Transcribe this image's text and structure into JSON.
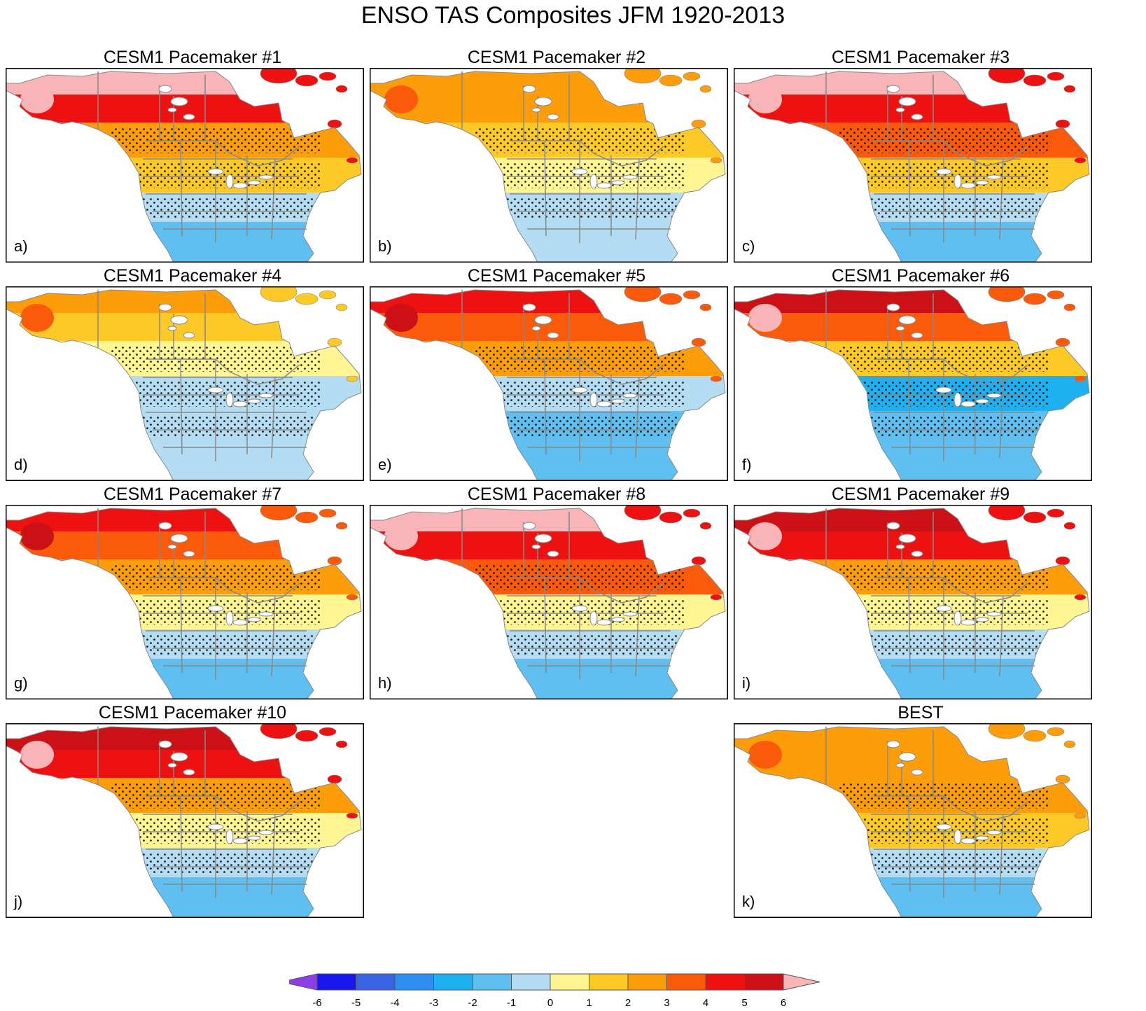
{
  "title": "ENSO TAS Composites JFM 1920-2013",
  "colors": {
    "ocean": "#ffffff",
    "border": "#888888",
    "frame": "#000000",
    "stipple": "#000000"
  },
  "chart_data": {
    "type": "heatmap",
    "variable": "TAS",
    "season": "JFM",
    "period": "1920-2013",
    "panels": [
      {
        "title": "CESM1 Pacemaker #1",
        "label": "a)",
        "bands": [
          6,
          4,
          2,
          1,
          -1,
          -2
        ]
      },
      {
        "title": "CESM1 Pacemaker #2",
        "label": "b)",
        "bands": [
          2,
          2,
          1,
          0,
          -1,
          -1
        ]
      },
      {
        "title": "CESM1 Pacemaker #3",
        "label": "c)",
        "bands": [
          6,
          4,
          3,
          1,
          -1,
          -2
        ]
      },
      {
        "title": "CESM1 Pacemaker #4",
        "label": "d)",
        "bands": [
          2,
          1,
          0,
          -1,
          -1,
          -1
        ]
      },
      {
        "title": "CESM1 Pacemaker #5",
        "label": "e)",
        "bands": [
          4,
          3,
          2,
          -1,
          -2,
          -2
        ]
      },
      {
        "title": "CESM1 Pacemaker #6",
        "label": "f)",
        "bands": [
          5,
          3,
          1,
          -3,
          -2,
          -2
        ]
      },
      {
        "title": "CESM1 Pacemaker #7",
        "label": "g)",
        "bands": [
          4,
          3,
          2,
          0,
          -1,
          -2
        ]
      },
      {
        "title": "CESM1 Pacemaker #8",
        "label": "h)",
        "bands": [
          6,
          4,
          3,
          0,
          -1,
          -2
        ]
      },
      {
        "title": "CESM1 Pacemaker #9",
        "label": "i)",
        "bands": [
          5,
          4,
          2,
          0,
          -1,
          -2
        ]
      },
      {
        "title": "CESM1 Pacemaker #10",
        "label": "j)",
        "bands": [
          5,
          4,
          2,
          0,
          -1,
          -2
        ]
      },
      {
        "title": "BEST",
        "label": "k)",
        "bands": [
          2,
          2,
          2,
          1,
          -1,
          -2
        ]
      }
    ],
    "colorbar": {
      "levels": [
        "-6",
        "-5",
        "-4",
        "-3",
        "-2",
        "-1",
        "0",
        "1",
        "2",
        "3",
        "4",
        "5",
        "6"
      ],
      "colors": [
        "#8e3ee6",
        "#1818ee",
        "#3a63e3",
        "#2f8ff0",
        "#1fb0f2",
        "#5ebff0",
        "#b4dcf2",
        "#fff592",
        "#fdc926",
        "#fd9d0a",
        "#fb5a0a",
        "#ee1111",
        "#cc1116",
        "#f8b4b6"
      ]
    }
  }
}
